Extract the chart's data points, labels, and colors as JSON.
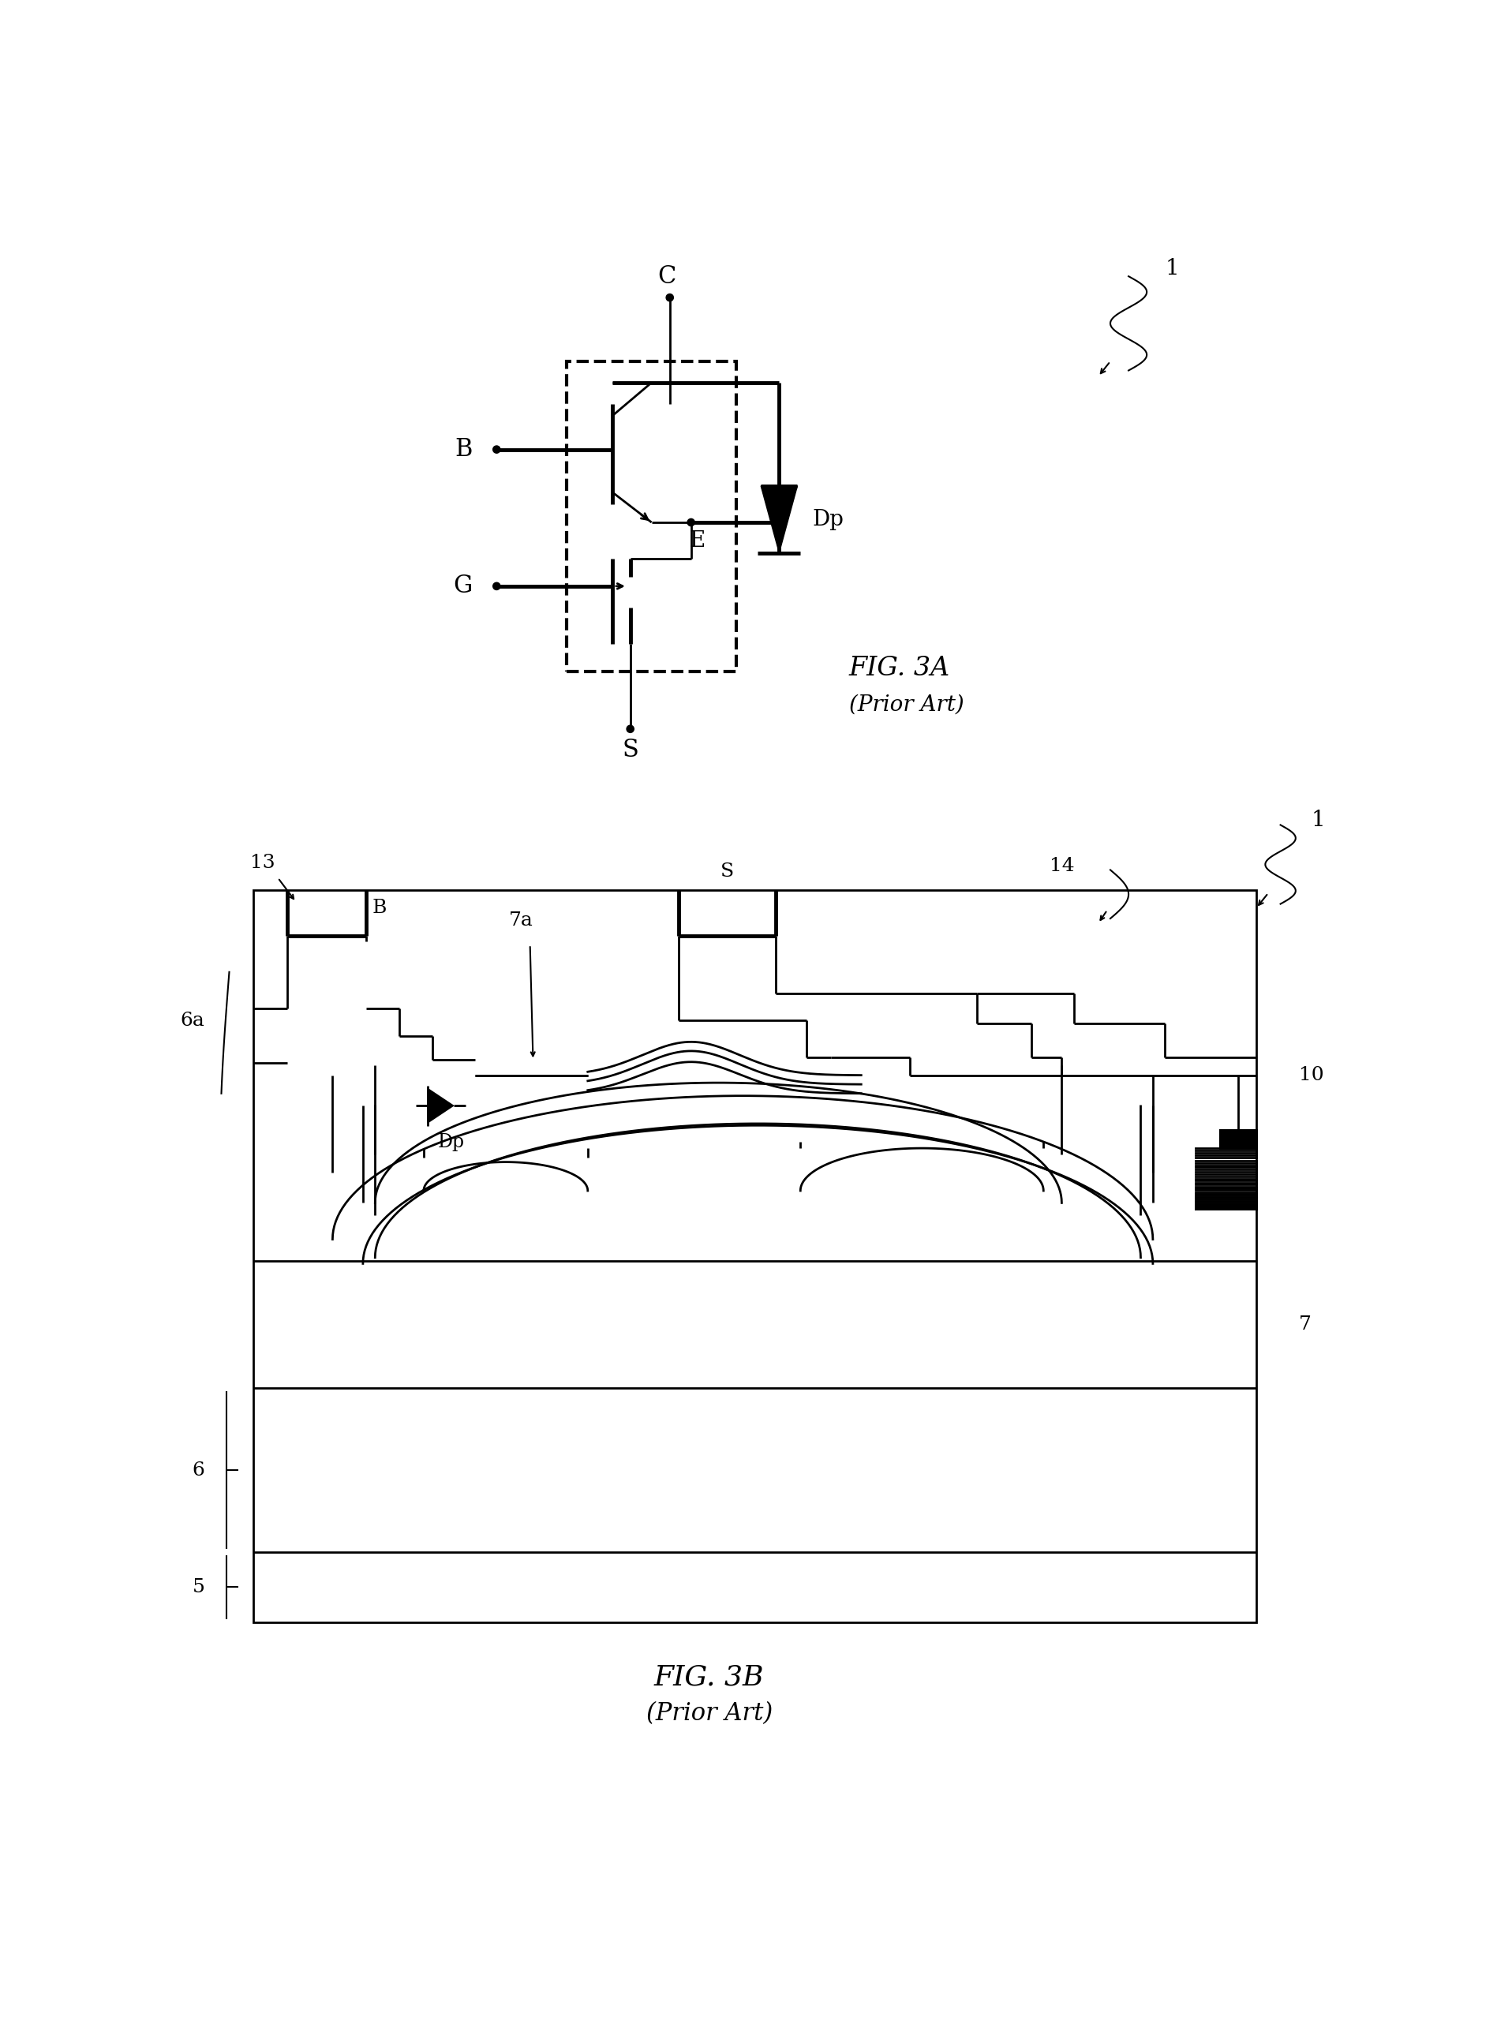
{
  "fig_width": 19.16,
  "fig_height": 25.65,
  "bg_color": "#ffffff",
  "fig3a_title": "FIG. 3A",
  "fig3a_subtitle": "(Prior Art)",
  "fig3b_title": "FIG. 3B",
  "fig3b_subtitle": "(Prior Art)",
  "lw_thin": 1.5,
  "lw_med": 2.0,
  "lw_thick": 3.5
}
